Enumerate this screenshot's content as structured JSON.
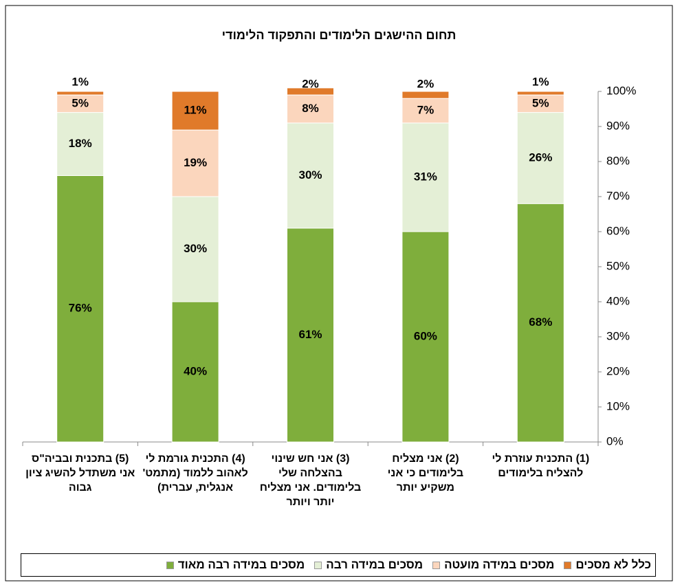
{
  "chart_data": {
    "type": "bar",
    "stacked": true,
    "title": "תחום ההישגים הלימודים והתפקוד הלימודי",
    "categories": [
      "(1) התכנית עוזרת לי להצליח בלימודים",
      "(2) אני מצליח בלימודים כי אני משקיע יותר",
      "(3) אני חש שינוי בהצלחה שלי בלימודים. אני מצליח יותר ויותר",
      "(4) התכנית גורמת לי לאהוב ללמוד (מתמט' אנגלית, עברית)",
      "(5) בתכנית ובביה\"ס אני משתדל להשיג ציון גבוה"
    ],
    "series": [
      {
        "name": "מסכים במידה רבה מאוד",
        "color": "#7fae3c",
        "values": [
          68,
          60,
          61,
          40,
          76
        ],
        "value_labels": [
          "68%",
          "60%",
          "61%",
          "40%",
          "76%"
        ]
      },
      {
        "name": "מסכים במידה רבה",
        "color": "#e4efd6",
        "values": [
          26,
          31,
          30,
          30,
          18
        ],
        "value_labels": [
          "26%",
          "31%",
          "30%",
          "30%",
          "18%"
        ]
      },
      {
        "name": "מסכים במידה מועטה",
        "color": "#fbd6bd",
        "values": [
          5,
          7,
          8,
          19,
          5
        ],
        "value_labels": [
          "5%",
          "7%",
          "8%",
          "19%",
          "5%"
        ]
      },
      {
        "name": "כלל לא מסכים",
        "color": "#e07a2a",
        "values": [
          1,
          2,
          2,
          11,
          1
        ],
        "value_labels": [
          "1%",
          "2%",
          "2%",
          "11%",
          "1%"
        ]
      }
    ],
    "ylim": [
      0,
      100
    ],
    "yticks": [
      {
        "value": 0,
        "label": "0%"
      },
      {
        "value": 10,
        "label": "10%"
      },
      {
        "value": 20,
        "label": "20%"
      },
      {
        "value": 30,
        "label": "30%"
      },
      {
        "value": 40,
        "label": "40%"
      },
      {
        "value": 50,
        "label": "50%"
      },
      {
        "value": 60,
        "label": "60%"
      },
      {
        "value": 70,
        "label": "70%"
      },
      {
        "value": 80,
        "label": "80%"
      },
      {
        "value": 90,
        "label": "90%"
      },
      {
        "value": 100,
        "label": "100%"
      }
    ],
    "y_axis_side": "right",
    "direction": "rtl",
    "grid": false
  }
}
